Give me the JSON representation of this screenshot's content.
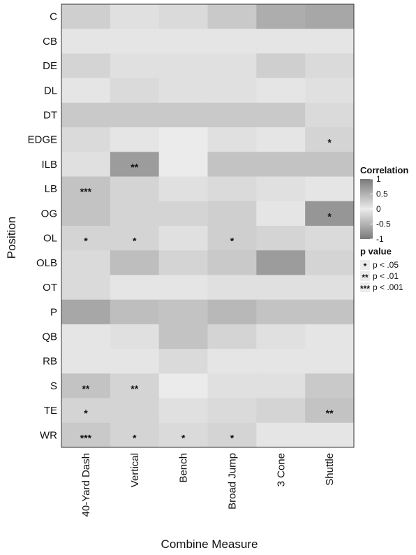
{
  "chart_data": {
    "type": "heatmap",
    "xlabel": "Combine Measure",
    "ylabel": "Position",
    "columns": [
      "40-Yard Dash",
      "Vertical",
      "Bench",
      "Broad Jump",
      "3 Cone",
      "Shuttle"
    ],
    "rows": [
      "C",
      "CB",
      "DE",
      "DL",
      "DT",
      "EDGE",
      "ILB",
      "LB",
      "OG",
      "OL",
      "OLB",
      "OT",
      "P",
      "QB",
      "RB",
      "S",
      "TE",
      "WR"
    ],
    "values": [
      [
        -0.25,
        -0.1,
        -0.15,
        -0.3,
        -0.55,
        -0.6
      ],
      [
        -0.05,
        -0.05,
        -0.05,
        -0.05,
        -0.05,
        -0.05
      ],
      [
        -0.2,
        -0.1,
        -0.1,
        -0.1,
        -0.25,
        -0.15
      ],
      [
        -0.05,
        -0.15,
        -0.1,
        -0.1,
        -0.05,
        -0.1
      ],
      [
        -0.3,
        -0.3,
        -0.3,
        -0.3,
        -0.3,
        -0.15
      ],
      [
        -0.15,
        -0.05,
        0.0,
        -0.1,
        -0.05,
        -0.2
      ],
      [
        -0.1,
        -0.7,
        0.0,
        -0.35,
        -0.35,
        -0.35
      ],
      [
        -0.35,
        -0.2,
        -0.1,
        -0.15,
        -0.1,
        -0.05
      ],
      [
        -0.35,
        -0.2,
        -0.2,
        -0.25,
        -0.05,
        -0.75
      ],
      [
        -0.2,
        -0.2,
        -0.1,
        -0.25,
        -0.2,
        -0.15
      ],
      [
        -0.15,
        -0.4,
        -0.2,
        -0.3,
        -0.7,
        -0.2
      ],
      [
        -0.15,
        -0.05,
        -0.05,
        -0.1,
        -0.1,
        -0.1
      ],
      [
        -0.6,
        -0.4,
        -0.35,
        -0.45,
        -0.35,
        -0.35
      ],
      [
        -0.05,
        -0.1,
        -0.35,
        -0.2,
        -0.1,
        -0.05
      ],
      [
        -0.05,
        -0.05,
        -0.15,
        -0.05,
        -0.05,
        -0.05
      ],
      [
        -0.35,
        -0.2,
        0.0,
        -0.1,
        -0.1,
        -0.3
      ],
      [
        -0.2,
        -0.2,
        -0.1,
        -0.15,
        -0.2,
        -0.35
      ],
      [
        -0.3,
        -0.2,
        -0.15,
        -0.2,
        -0.05,
        -0.05
      ]
    ],
    "significance": [
      [
        "",
        "",
        "",
        "",
        "",
        ""
      ],
      [
        "",
        "",
        "",
        "",
        "",
        ""
      ],
      [
        "",
        "",
        "",
        "",
        "",
        ""
      ],
      [
        "",
        "",
        "",
        "",
        "",
        ""
      ],
      [
        "",
        "",
        "",
        "",
        "",
        ""
      ],
      [
        "",
        "",
        "",
        "",
        "",
        "*"
      ],
      [
        "",
        "**",
        "",
        "",
        "",
        ""
      ],
      [
        "***",
        "",
        "",
        "",
        "",
        ""
      ],
      [
        "",
        "",
        "",
        "",
        "",
        "*"
      ],
      [
        "*",
        "*",
        "",
        "*",
        "",
        ""
      ],
      [
        "",
        "",
        "",
        "",
        "",
        ""
      ],
      [
        "",
        "",
        "",
        "",
        "",
        ""
      ],
      [
        "",
        "",
        "",
        "",
        "",
        ""
      ],
      [
        "",
        "",
        "",
        "",
        "",
        ""
      ],
      [
        "",
        "",
        "",
        "",
        "",
        ""
      ],
      [
        "**",
        "**",
        "",
        "",
        "",
        ""
      ],
      [
        "*",
        "",
        "",
        "",
        "",
        "**"
      ],
      [
        "***",
        "*",
        "*",
        "*",
        "",
        ""
      ]
    ],
    "color_range": [
      -1,
      1
    ],
    "colors": {
      "low": "#7a7a7a",
      "mid": "#ebebeb",
      "high": "#7a7a7a"
    },
    "legend": {
      "position": "right",
      "color_title": "Correlation",
      "color_ticks": [
        "1",
        "0.5",
        "0",
        "-0.5",
        "-1"
      ],
      "color_tick_values": [
        1,
        0.5,
        0,
        -0.5,
        -1
      ],
      "p_title": "p value",
      "p_items": [
        {
          "symbol": "*",
          "label": "p < .05"
        },
        {
          "symbol": "**",
          "label": "p < .01"
        },
        {
          "symbol": "***",
          "label": "p < .001"
        }
      ]
    }
  }
}
